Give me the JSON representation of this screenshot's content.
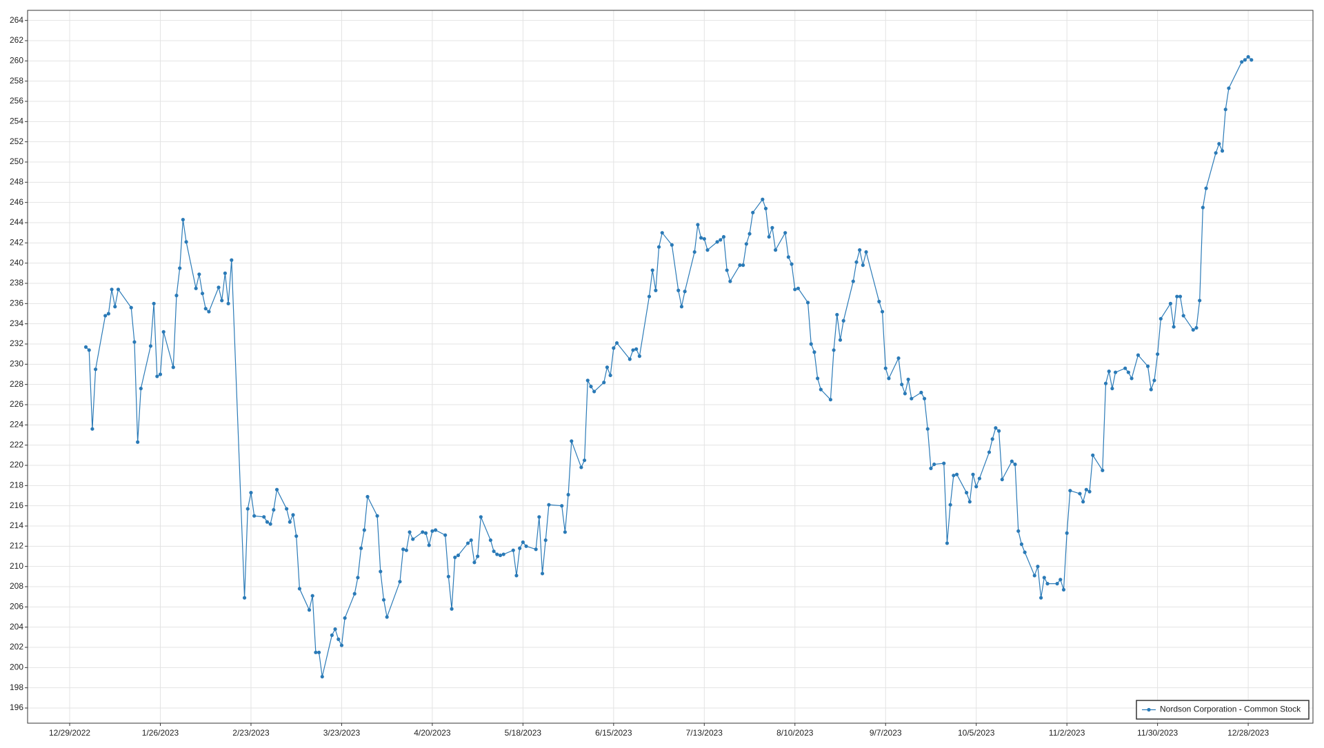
{
  "chart_data": {
    "type": "line",
    "x": [
      "1/3/2023",
      "1/4/2023",
      "1/5/2023",
      "1/6/2023",
      "1/9/2023",
      "1/10/2023",
      "1/11/2023",
      "1/12/2023",
      "1/13/2023",
      "1/17/2023",
      "1/18/2023",
      "1/19/2023",
      "1/20/2023",
      "1/23/2023",
      "1/24/2023",
      "1/25/2023",
      "1/26/2023",
      "1/27/2023",
      "1/30/2023",
      "1/31/2023",
      "2/1/2023",
      "2/2/2023",
      "2/3/2023",
      "2/6/2023",
      "2/7/2023",
      "2/8/2023",
      "2/9/2023",
      "2/10/2023",
      "2/13/2023",
      "2/14/2023",
      "2/15/2023",
      "2/16/2023",
      "2/17/2023",
      "2/21/2023",
      "2/22/2023",
      "2/23/2023",
      "2/24/2023",
      "2/27/2023",
      "2/28/2023",
      "3/1/2023",
      "3/2/2023",
      "3/3/2023",
      "3/6/2023",
      "3/7/2023",
      "3/8/2023",
      "3/9/2023",
      "3/10/2023",
      "3/13/2023",
      "3/14/2023",
      "3/15/2023",
      "3/16/2023",
      "3/17/2023",
      "3/20/2023",
      "3/21/2023",
      "3/22/2023",
      "3/23/2023",
      "3/24/2023",
      "3/27/2023",
      "3/28/2023",
      "3/29/2023",
      "3/30/2023",
      "3/31/2023",
      "4/3/2023",
      "4/4/2023",
      "4/5/2023",
      "4/6/2023",
      "4/10/2023",
      "4/11/2023",
      "4/12/2023",
      "4/13/2023",
      "4/14/2023",
      "4/17/2023",
      "4/18/2023",
      "4/19/2023",
      "4/20/2023",
      "4/21/2023",
      "4/24/2023",
      "4/25/2023",
      "4/26/2023",
      "4/27/2023",
      "4/28/2023",
      "5/1/2023",
      "5/2/2023",
      "5/3/2023",
      "5/4/2023",
      "5/5/2023",
      "5/8/2023",
      "5/9/2023",
      "5/10/2023",
      "5/11/2023",
      "5/12/2023",
      "5/15/2023",
      "5/16/2023",
      "5/17/2023",
      "5/18/2023",
      "5/19/2023",
      "5/22/2023",
      "5/23/2023",
      "5/24/2023",
      "5/25/2023",
      "5/26/2023",
      "5/30/2023",
      "5/31/2023",
      "6/1/2023",
      "6/2/2023",
      "6/5/2023",
      "6/6/2023",
      "6/7/2023",
      "6/8/2023",
      "6/9/2023",
      "6/12/2023",
      "6/13/2023",
      "6/14/2023",
      "6/15/2023",
      "6/16/2023",
      "6/20/2023",
      "6/21/2023",
      "6/22/2023",
      "6/23/2023",
      "6/26/2023",
      "6/27/2023",
      "6/28/2023",
      "6/29/2023",
      "6/30/2023",
      "7/3/2023",
      "7/5/2023",
      "7/6/2023",
      "7/7/2023",
      "7/10/2023",
      "7/11/2023",
      "7/12/2023",
      "7/13/2023",
      "7/14/2023",
      "7/17/2023",
      "7/18/2023",
      "7/19/2023",
      "7/20/2023",
      "7/21/2023",
      "7/24/2023",
      "7/25/2023",
      "7/26/2023",
      "7/27/2023",
      "7/28/2023",
      "7/31/2023",
      "8/1/2023",
      "8/2/2023",
      "8/3/2023",
      "8/4/2023",
      "8/7/2023",
      "8/8/2023",
      "8/9/2023",
      "8/10/2023",
      "8/11/2023",
      "8/14/2023",
      "8/15/2023",
      "8/16/2023",
      "8/17/2023",
      "8/18/2023",
      "8/21/2023",
      "8/22/2023",
      "8/23/2023",
      "8/24/2023",
      "8/25/2023",
      "8/28/2023",
      "8/29/2023",
      "8/30/2023",
      "8/31/2023",
      "9/1/2023",
      "9/5/2023",
      "9/6/2023",
      "9/7/2023",
      "9/8/2023",
      "9/11/2023",
      "9/12/2023",
      "9/13/2023",
      "9/14/2023",
      "9/15/2023",
      "9/18/2023",
      "9/19/2023",
      "9/20/2023",
      "9/21/2023",
      "9/22/2023",
      "9/25/2023",
      "9/26/2023",
      "9/27/2023",
      "9/28/2023",
      "9/29/2023",
      "10/2/2023",
      "10/3/2023",
      "10/4/2023",
      "10/5/2023",
      "10/6/2023",
      "10/9/2023",
      "10/10/2023",
      "10/11/2023",
      "10/12/2023",
      "10/13/2023",
      "10/16/2023",
      "10/17/2023",
      "10/18/2023",
      "10/19/2023",
      "10/20/2023",
      "10/23/2023",
      "10/24/2023",
      "10/25/2023",
      "10/26/2023",
      "10/27/2023",
      "10/30/2023",
      "10/31/2023",
      "11/1/2023",
      "11/2/2023",
      "11/3/2023",
      "11/6/2023",
      "11/7/2023",
      "11/8/2023",
      "11/9/2023",
      "11/10/2023",
      "11/13/2023",
      "11/14/2023",
      "11/15/2023",
      "11/16/2023",
      "11/17/2023",
      "11/20/2023",
      "11/21/2023",
      "11/22/2023",
      "11/24/2023",
      "11/27/2023",
      "11/28/2023",
      "11/29/2023",
      "11/30/2023",
      "12/1/2023",
      "12/4/2023",
      "12/5/2023",
      "12/6/2023",
      "12/7/2023",
      "12/8/2023",
      "12/11/2023",
      "12/12/2023",
      "12/13/2023",
      "12/14/2023",
      "12/15/2023",
      "12/18/2023",
      "12/19/2023",
      "12/20/2023",
      "12/21/2023",
      "12/22/2023",
      "12/26/2023",
      "12/27/2023",
      "12/28/2023",
      "12/29/2023"
    ],
    "series": [
      {
        "name": "Nordson Corporation - Common Stock",
        "color": "#2a7ab7",
        "values": [
          231.7,
          231.4,
          223.6,
          229.5,
          234.8,
          235.0,
          237.4,
          235.7,
          237.4,
          235.6,
          232.2,
          222.3,
          227.6,
          231.8,
          236.0,
          228.8,
          229.0,
          233.2,
          229.7,
          236.8,
          239.5,
          244.3,
          242.1,
          237.5,
          238.9,
          237.0,
          235.5,
          235.2,
          237.6,
          236.3,
          239.0,
          236.0,
          240.3,
          206.9,
          215.7,
          217.3,
          215.0,
          214.9,
          214.4,
          214.2,
          215.6,
          217.6,
          215.7,
          214.4,
          215.1,
          213.0,
          207.8,
          205.7,
          207.1,
          201.5,
          201.5,
          199.1,
          203.2,
          203.8,
          202.8,
          202.2,
          204.9,
          207.3,
          208.9,
          211.8,
          213.6,
          216.9,
          215.0,
          209.5,
          206.7,
          205.0,
          208.5,
          211.7,
          211.6,
          213.4,
          212.7,
          213.4,
          213.3,
          212.1,
          213.5,
          213.6,
          213.1,
          209.0,
          205.8,
          210.9,
          211.1,
          212.3,
          212.6,
          210.4,
          211.0,
          214.9,
          212.6,
          211.5,
          211.2,
          211.1,
          211.2,
          211.6,
          209.1,
          211.8,
          212.4,
          212.0,
          211.7,
          214.9,
          209.3,
          212.6,
          216.1,
          216.0,
          213.4,
          217.1,
          222.4,
          219.8,
          220.5,
          228.4,
          227.8,
          227.3,
          228.2,
          229.7,
          228.9,
          231.6,
          232.1,
          230.5,
          231.4,
          231.5,
          230.8,
          236.7,
          239.3,
          237.3,
          241.6,
          243.0,
          241.8,
          237.3,
          235.7,
          237.2,
          241.1,
          243.8,
          242.5,
          242.4,
          241.3,
          242.1,
          242.3,
          242.6,
          239.3,
          238.2,
          239.8,
          239.8,
          241.9,
          242.9,
          245.0,
          246.3,
          245.4,
          242.6,
          243.5,
          241.3,
          243.0,
          240.6,
          239.9,
          237.4,
          237.5,
          236.1,
          232.0,
          231.2,
          228.6,
          227.5,
          226.5,
          231.4,
          234.9,
          232.4,
          234.3,
          238.2,
          240.1,
          241.3,
          239.8,
          241.1,
          236.2,
          235.2,
          229.6,
          228.6,
          230.6,
          228.0,
          227.1,
          228.5,
          226.6,
          227.2,
          226.6,
          223.6,
          219.7,
          220.1,
          220.2,
          212.3,
          216.1,
          219.0,
          219.1,
          217.3,
          216.4,
          219.1,
          217.9,
          218.7,
          221.3,
          222.6,
          223.7,
          223.4,
          218.6,
          220.4,
          220.1,
          213.5,
          212.2,
          211.4,
          209.1,
          210.0,
          206.9,
          208.9,
          208.3,
          208.3,
          208.7,
          207.7,
          213.3,
          217.5,
          217.2,
          216.4,
          217.6,
          217.4,
          221.0,
          219.5,
          228.1,
          229.3,
          227.6,
          229.2,
          229.6,
          229.2,
          228.6,
          230.9,
          229.8,
          227.5,
          228.4,
          231.0,
          234.5,
          236.0,
          233.7,
          236.7,
          236.7,
          234.8,
          233.4,
          233.6,
          236.3,
          245.5,
          247.4,
          250.9,
          251.8,
          251.1,
          255.2,
          257.3,
          259.9,
          260.1,
          260.4,
          260.1
        ]
      }
    ],
    "xlim": [
      "12/16/2022",
      "1/17/2024"
    ],
    "xticks": [
      "12/29/2022",
      "1/26/2023",
      "2/23/2023",
      "3/23/2023",
      "4/20/2023",
      "5/18/2023",
      "6/15/2023",
      "7/13/2023",
      "8/10/2023",
      "9/7/2023",
      "10/5/2023",
      "11/2/2023",
      "11/30/2023",
      "12/28/2023"
    ],
    "ylim": [
      194.5,
      265
    ],
    "yticks": [
      196,
      198,
      200,
      202,
      204,
      206,
      208,
      210,
      212,
      214,
      216,
      218,
      220,
      222,
      224,
      226,
      228,
      230,
      232,
      234,
      236,
      238,
      240,
      242,
      244,
      246,
      248,
      250,
      252,
      254,
      256,
      258,
      260,
      262,
      264
    ],
    "grid": true,
    "legend": "lower right"
  }
}
